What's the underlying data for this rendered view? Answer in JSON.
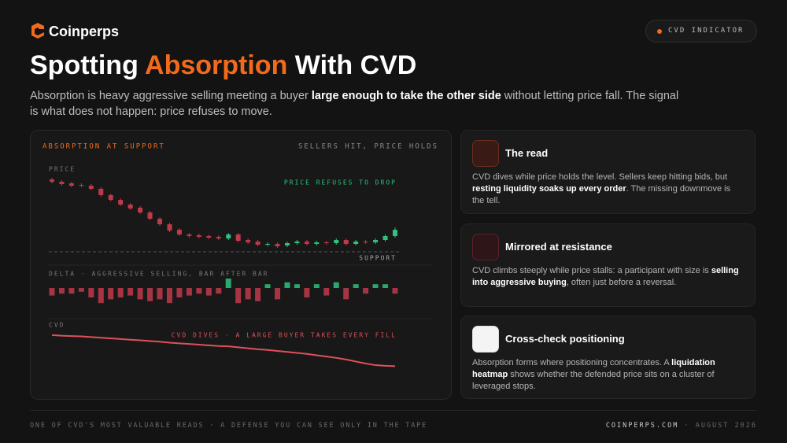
{
  "header": {
    "brand": "Coinperps",
    "badge": "CVD INDICATOR"
  },
  "title": {
    "before": "Spotting ",
    "highlight": "Absorption",
    "after": " With CVD"
  },
  "intro": [
    "Absorption is heavy aggressive selling meeting a buyer ",
    "large enough to take the other side",
    " without letting price fall. The signal is what does not happen: price refuses to move."
  ],
  "chart_data": {
    "type": "candlestick",
    "title": "ABSORPTION AT SUPPORT",
    "subtitle": "SELLERS HIT, PRICE HOLDS",
    "price_label": "PRICE",
    "price_annotation": "PRICE REFUSES TO DROP",
    "support_label": "SUPPORT",
    "delta_label": "DELTA · AGGRESSIVE SELLING, BAR AFTER BAR",
    "cvd_label": "CVD",
    "cvd_annotation": "CVD DIVES · A LARGE BUYER TAKES EVERY FILL",
    "up_color": "#2ec27e",
    "down_color": "#c0394a",
    "cvd_color": "#e0505a",
    "ylim": [
      0,
      100
    ],
    "support_level": 0,
    "delta_lim": [
      -10,
      10
    ],
    "cvd_lim": [
      -100,
      0
    ],
    "open": [
      92,
      89,
      87,
      85,
      84,
      80,
      72,
      66,
      60,
      56,
      50,
      42,
      35,
      28,
      22,
      21,
      20,
      19,
      17,
      22,
      15,
      13,
      9,
      10,
      8,
      11,
      13,
      10,
      12,
      11,
      15,
      10,
      13,
      12,
      15,
      20
    ],
    "close": [
      89,
      86,
      84,
      84,
      80,
      72,
      66,
      60,
      55,
      50,
      42,
      35,
      27,
      22,
      20,
      19,
      18,
      17,
      22,
      14,
      12,
      9,
      10,
      7,
      11,
      13,
      10,
      12,
      11,
      15,
      10,
      13,
      12,
      15,
      20,
      28
    ],
    "high": [
      94,
      91,
      89,
      87,
      86,
      82,
      74,
      68,
      62,
      58,
      52,
      44,
      37,
      30,
      24,
      23,
      22,
      21,
      24,
      24,
      17,
      15,
      12,
      12,
      13,
      15,
      15,
      14,
      14,
      17,
      17,
      15,
      15,
      17,
      22,
      31
    ],
    "low": [
      87,
      84,
      82,
      82,
      78,
      70,
      64,
      58,
      53,
      48,
      40,
      33,
      25,
      20,
      18,
      17,
      16,
      15,
      15,
      12,
      10,
      7,
      7,
      5,
      6,
      9,
      8,
      8,
      9,
      9,
      8,
      8,
      10,
      10,
      13,
      18
    ],
    "delta": [
      -4,
      -3,
      -3,
      -2,
      -5,
      -8,
      -6,
      -5,
      -4,
      -6,
      -7,
      -6,
      -8,
      -5,
      -4,
      -3,
      -4,
      -3,
      5,
      -8,
      -6,
      -7,
      2,
      -6,
      3,
      2,
      -5,
      2,
      -4,
      3,
      -6,
      2,
      -3,
      2,
      2,
      -3
    ],
    "cvd": [
      -2,
      -4,
      -5,
      -6,
      -8,
      -10,
      -12,
      -14,
      -16,
      -18,
      -20,
      -22,
      -25,
      -27,
      -29,
      -31,
      -33,
      -35,
      -36,
      -39,
      -42,
      -45,
      -47,
      -50,
      -53,
      -56,
      -59,
      -63,
      -67,
      -71,
      -76,
      -82,
      -88,
      -93,
      -95,
      -96
    ]
  },
  "cards": [
    {
      "title": "The read",
      "body": [
        "CVD dives while price holds the level. Sellers keep hitting bids, but ",
        "resting liquidity soaks up every order",
        ". The missing downmove is the tell."
      ]
    },
    {
      "title": "Mirrored at resistance",
      "body": [
        "CVD climbs steeply while price stalls: a participant with size is ",
        "selling into aggressive buying",
        ", often just before a reversal."
      ]
    },
    {
      "title": "Cross-check positioning",
      "body": [
        "Absorption forms where positioning concentrates. A ",
        "liquidation heatmap",
        " shows whether the defended price sits on a cluster of leveraged stops."
      ]
    }
  ],
  "footer": {
    "left": "ONE OF CVD'S MOST VALUABLE READS · A DEFENSE YOU CAN SEE ONLY IN THE TAPE",
    "site": "COINPERPS.COM",
    "date": "AUGUST 2026"
  }
}
